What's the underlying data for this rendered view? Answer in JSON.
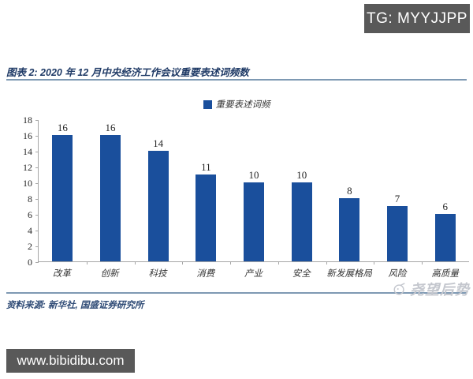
{
  "overlays": {
    "tg_badge": "TG: MYYJJPP",
    "site_badge": "www.bibidibu.com"
  },
  "figure": {
    "title": "图表 2: 2020 年 12 月中央经济工作会议重要表述词频数",
    "source": "资料来源: 新华社, 国盛证券研究所",
    "watermark": "尧望后势"
  },
  "chart_data": {
    "type": "bar",
    "title": "2020 年 12 月中央经济工作会议重要表述词频数",
    "legend": [
      "重要表述词频"
    ],
    "legend_position": "top-center",
    "categories": [
      "改革",
      "创新",
      "科技",
      "消费",
      "产业",
      "安全",
      "新发展格局",
      "风险",
      "高质量"
    ],
    "values": [
      16,
      16,
      14,
      11,
      10,
      10,
      8,
      7,
      6
    ],
    "ylim": [
      0,
      18
    ],
    "yticks": [
      0,
      2,
      4,
      6,
      8,
      10,
      12,
      14,
      16,
      18
    ],
    "grid": false,
    "data_labels": true,
    "bar_color": "#1a4f9c"
  },
  "colors": {
    "bar": "#1a4f9c",
    "title_text": "#1f3a66",
    "rule_line": "#7e99b3",
    "axis_line": "#a6a6a6",
    "badge_bg": "#595959",
    "watermark": "#c4c7ce"
  }
}
